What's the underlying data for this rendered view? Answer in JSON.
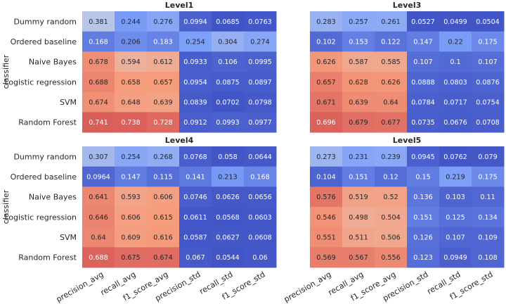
{
  "chart_data": {
    "type": "heatmap",
    "ylabel": "classifier",
    "rows": [
      "Dummy random",
      "Ordered baseline",
      "Naive Bayes",
      "Logistic regression",
      "SVM",
      "Random Forest"
    ],
    "columns": [
      "precision_avg",
      "recall_avg",
      "f1_score_avg",
      "precision_std",
      "recall_std",
      "f1_score_std"
    ],
    "colormap": "coolwarm",
    "panels": [
      {
        "title": "Level1",
        "values": [
          [
            "0.381",
            "0.244",
            "0.276",
            "0.0994",
            "0.0685",
            "0.0763"
          ],
          [
            "0.168",
            "0.206",
            "0.183",
            "0.254",
            "0.304",
            "0.274"
          ],
          [
            "0.678",
            "0.594",
            "0.612",
            "0.0933",
            "0.106",
            "0.0995"
          ],
          [
            "0.688",
            "0.658",
            "0.657",
            "0.0954",
            "0.0875",
            "0.0897"
          ],
          [
            "0.674",
            "0.648",
            "0.639",
            "0.0839",
            "0.0702",
            "0.0798"
          ],
          [
            "0.741",
            "0.738",
            "0.728",
            "0.0912",
            "0.0993",
            "0.0977"
          ]
        ]
      },
      {
        "title": "Level3",
        "values": [
          [
            "0.283",
            "0.257",
            "0.261",
            "0.0527",
            "0.0499",
            "0.0504"
          ],
          [
            "0.102",
            "0.153",
            "0.122",
            "0.147",
            "0.22",
            "0.175"
          ],
          [
            "0.626",
            "0.587",
            "0.585",
            "0.107",
            "0.1",
            "0.107"
          ],
          [
            "0.657",
            "0.628",
            "0.626",
            "0.0888",
            "0.0803",
            "0.0876"
          ],
          [
            "0.671",
            "0.639",
            "0.64",
            "0.0784",
            "0.0717",
            "0.0754"
          ],
          [
            "0.696",
            "0.679",
            "0.677",
            "0.0735",
            "0.0676",
            "0.0708"
          ]
        ]
      },
      {
        "title": "Level4",
        "values": [
          [
            "0.307",
            "0.254",
            "0.268",
            "0.0768",
            "0.058",
            "0.0644"
          ],
          [
            "0.0964",
            "0.147",
            "0.115",
            "0.141",
            "0.213",
            "0.168"
          ],
          [
            "0.641",
            "0.593",
            "0.606",
            "0.0746",
            "0.0626",
            "0.0656"
          ],
          [
            "0.646",
            "0.606",
            "0.615",
            "0.0611",
            "0.0568",
            "0.0603"
          ],
          [
            "0.64",
            "0.609",
            "0.616",
            "0.0587",
            "0.0627",
            "0.0608"
          ],
          [
            "0.688",
            "0.675",
            "0.674",
            "0.067",
            "0.0544",
            "0.06"
          ]
        ]
      },
      {
        "title": "Level5",
        "values": [
          [
            "0.273",
            "0.231",
            "0.239",
            "0.0945",
            "0.0762",
            "0.079"
          ],
          [
            "0.104",
            "0.151",
            "0.12",
            "0.15",
            "0.219",
            "0.175"
          ],
          [
            "0.576",
            "0.519",
            "0.52",
            "0.136",
            "0.103",
            "0.11"
          ],
          [
            "0.546",
            "0.498",
            "0.504",
            "0.151",
            "0.125",
            "0.134"
          ],
          [
            "0.551",
            "0.511",
            "0.506",
            "0.126",
            "0.107",
            "0.109"
          ],
          [
            "0.569",
            "0.567",
            "0.556",
            "0.123",
            "0.0949",
            "0.108"
          ]
        ]
      }
    ]
  }
}
